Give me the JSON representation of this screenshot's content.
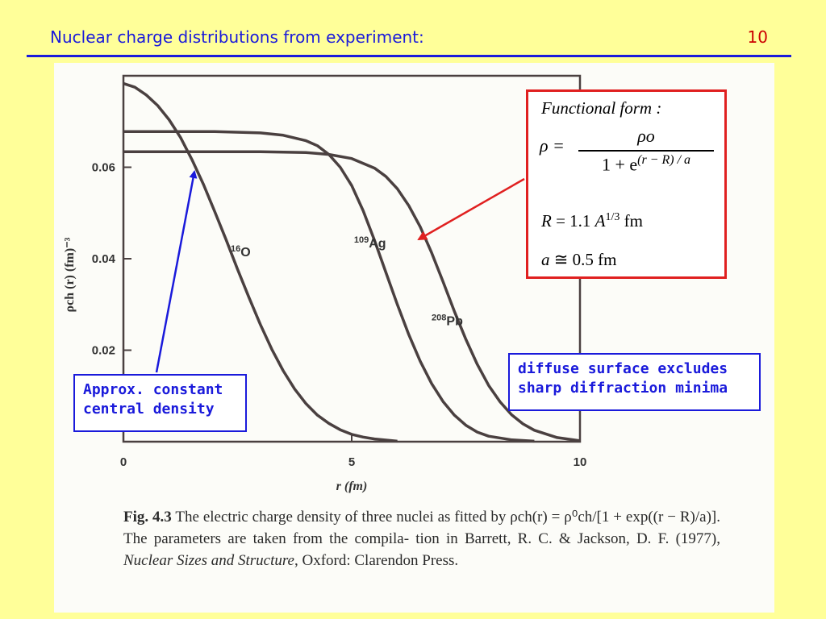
{
  "slide": {
    "title": "Nuclear charge distributions from experiment:",
    "number": "10"
  },
  "chart_data": {
    "type": "line",
    "title": "",
    "xlabel": "r (fm)",
    "ylabel": "ρch (r) (fm)⁻³",
    "xlim": [
      0,
      10
    ],
    "ylim": [
      0,
      0.08
    ],
    "x_ticks": [
      0,
      5,
      10
    ],
    "x_tick_labels": [
      "0",
      "5",
      "10"
    ],
    "y_ticks": [
      0.02,
      0.04,
      0.06
    ],
    "y_tick_labels": [
      "0.02",
      "0.04",
      "0.06"
    ],
    "grid": false,
    "series": [
      {
        "name": "16O",
        "label_main": "O",
        "label_sup": "16",
        "x": [
          0,
          0.25,
          0.5,
          0.75,
          1,
          1.25,
          1.5,
          1.75,
          2,
          2.25,
          2.5,
          2.75,
          3,
          3.25,
          3.5,
          3.75,
          4,
          4.25,
          4.5,
          4.75,
          5,
          5.25,
          5.5,
          6
        ],
        "y": [
          0.0783,
          0.0775,
          0.0758,
          0.0735,
          0.0704,
          0.0665,
          0.0617,
          0.0563,
          0.0503,
          0.0441,
          0.0377,
          0.0315,
          0.0256,
          0.0202,
          0.0155,
          0.0115,
          0.0083,
          0.0058,
          0.004,
          0.0026,
          0.0016,
          0.001,
          0.0006,
          0.0001
        ]
      },
      {
        "name": "109Ag",
        "label_main": "Ag",
        "label_sup": "109",
        "x": [
          0,
          1,
          2,
          3,
          3.5,
          4,
          4.25,
          4.5,
          4.75,
          5,
          5.25,
          5.5,
          5.75,
          6,
          6.25,
          6.5,
          6.75,
          7,
          7.25,
          7.5,
          7.75,
          8,
          8.5,
          9
        ],
        "y": [
          0.0678,
          0.0678,
          0.0678,
          0.0675,
          0.067,
          0.0658,
          0.0647,
          0.0628,
          0.06,
          0.056,
          0.0505,
          0.044,
          0.037,
          0.03,
          0.0234,
          0.0176,
          0.0127,
          0.0088,
          0.0058,
          0.0036,
          0.0021,
          0.0012,
          0.0004,
          0.0001
        ]
      },
      {
        "name": "208Pb",
        "label_main": "Pb",
        "label_sup": "208",
        "x": [
          0,
          1,
          2,
          3,
          4,
          4.5,
          5,
          5.5,
          5.75,
          6,
          6.25,
          6.5,
          6.75,
          7,
          7.25,
          7.5,
          7.75,
          8,
          8.25,
          8.5,
          8.75,
          9,
          9.5,
          10
        ],
        "y": [
          0.0634,
          0.0634,
          0.0634,
          0.0634,
          0.0632,
          0.0628,
          0.0619,
          0.0598,
          0.058,
          0.0553,
          0.0516,
          0.047,
          0.0413,
          0.035,
          0.0285,
          0.0224,
          0.0169,
          0.0123,
          0.0087,
          0.0059,
          0.0039,
          0.0025,
          0.0009,
          0.0002
        ]
      }
    ]
  },
  "caption": {
    "fig_label": "Fig. 4.3",
    "line1": "The electric charge density of three nuclei as fitted by",
    "formula": "ρch(r) = ρ⁰ch/[1 + exp((r − R)/a)].",
    "line2_rest": "The parameters are taken from the compila-",
    "line3": "tion in Barrett, R. C. & Jackson, D. F. (1977),",
    "book": "Nuclear Sizes and Structure",
    "line4": "Oxford: Clarendon Press."
  },
  "formula_box": {
    "heading": "Functional form :",
    "lhs": "ρ =",
    "numerator": "ρo",
    "denominator_base": "1 + e",
    "denominator_exp": "(r − R) / a",
    "radius_line": "R = 1.1 A¹ᐟ³ fm",
    "R_symbol": "R",
    "R_eq": " = 1.1 ",
    "A_symbol": "A",
    "A_exp": "1/3",
    "R_unit": " fm",
    "a_line": "a ≅ 0.5 fm",
    "a_symbol": "a",
    "a_rest": " ≅ 0.5 fm"
  },
  "callouts": {
    "density_line1": "Approx. constant",
    "density_line2": "central density",
    "surface_line1": "diffuse surface excludes",
    "surface_line2": "sharp diffraction minima"
  },
  "colors": {
    "background": "#ffff99",
    "title": "#1a1adb",
    "slide_number": "#cc0000",
    "curve": "#4a4040",
    "red_arrow": "#e02020",
    "blue_arrow": "#1a1adb"
  }
}
